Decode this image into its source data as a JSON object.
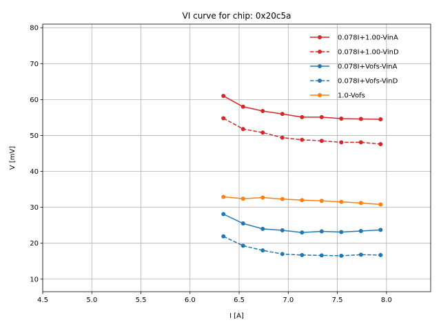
{
  "chart_data": {
    "type": "line",
    "title": "VI curve for chip: 0x20c5a",
    "xlabel": "I [A]",
    "ylabel": "V [mV]",
    "xlim": [
      4.5,
      8.45
    ],
    "ylim": [
      6.5,
      81.0
    ],
    "grid": true,
    "legend_position": "top-right",
    "x_ticks": [
      4.5,
      5.0,
      5.5,
      6.0,
      6.5,
      7.0,
      7.5,
      8.0
    ],
    "x_tick_labels": [
      "4.5",
      "5.0",
      "5.5",
      "6.0",
      "6.5",
      "7.0",
      "7.5",
      "8.0"
    ],
    "y_ticks": [
      10,
      20,
      30,
      40,
      50,
      60,
      70,
      80
    ],
    "y_tick_labels": [
      "10",
      "20",
      "30",
      "40",
      "50",
      "60",
      "70",
      "80"
    ],
    "x": [
      6.34,
      6.54,
      6.74,
      6.94,
      7.14,
      7.34,
      7.54,
      7.74,
      7.94
    ],
    "series": [
      {
        "name": "0.078I+1.00-VinA",
        "color": "#d62728",
        "dashed": false,
        "values": [
          61.0,
          58.0,
          56.8,
          56.0,
          55.1,
          55.1,
          54.7,
          54.6,
          54.5
        ]
      },
      {
        "name": "0.078I+1.00-VinD",
        "color": "#d62728",
        "dashed": true,
        "values": [
          54.8,
          51.8,
          50.8,
          49.4,
          48.8,
          48.5,
          48.1,
          48.1,
          47.6
        ]
      },
      {
        "name": "0.078I+Vofs-VinA",
        "color": "#1f77b4",
        "dashed": false,
        "values": [
          28.1,
          25.5,
          24.0,
          23.6,
          23.0,
          23.3,
          23.1,
          23.4,
          23.7
        ]
      },
      {
        "name": "0.078I+Vofs-VinD",
        "color": "#1f77b4",
        "dashed": true,
        "values": [
          21.9,
          19.3,
          18.0,
          17.0,
          16.7,
          16.6,
          16.5,
          16.8,
          16.7
        ]
      },
      {
        "name": "1.0-Vofs",
        "color": "#ff7f0e",
        "dashed": false,
        "values": [
          32.9,
          32.4,
          32.7,
          32.3,
          32.0,
          31.8,
          31.5,
          31.2,
          30.8
        ]
      }
    ]
  }
}
